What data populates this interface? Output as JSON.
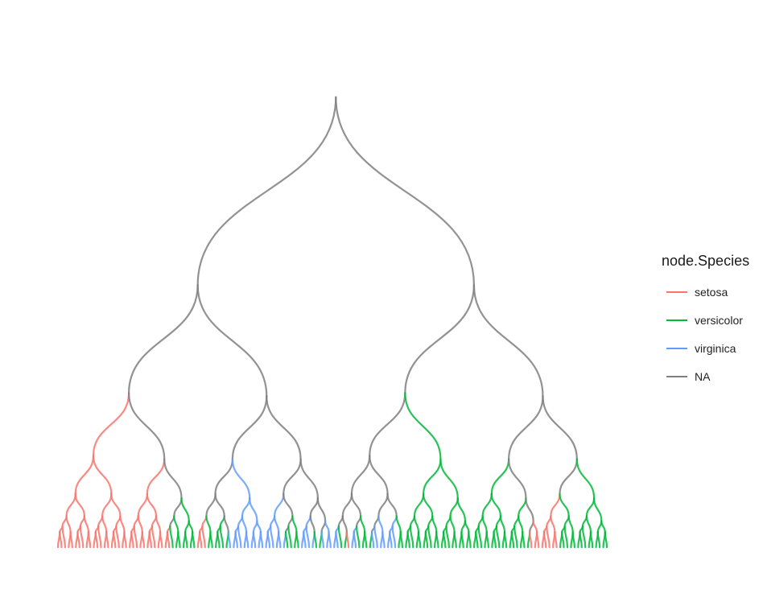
{
  "legend": {
    "title": "node.Species",
    "items": [
      {
        "label": "setosa",
        "color": "#F8766D"
      },
      {
        "label": "versicolor",
        "color": "#00BA38"
      },
      {
        "label": "virginica",
        "color": "#619CFF"
      },
      {
        "label": "NA",
        "color": "#7F7F7F"
      }
    ]
  },
  "tree": {
    "leaves": "RRRRRRRRRRRRRRRRRRRRRRRRRRRRRRRRGGGGGGGRRRGGGGGGBBBBBBBBBBBBBBBBGGGGBBBBGGBBBBBGGRBBGGGGBBBBBBBGGGGGGGGGGGGGGGGGGGGGGGGGGGGGGGGGGGGGRRRRRRRRGGGGGGGGGGGGGG"
  }
}
